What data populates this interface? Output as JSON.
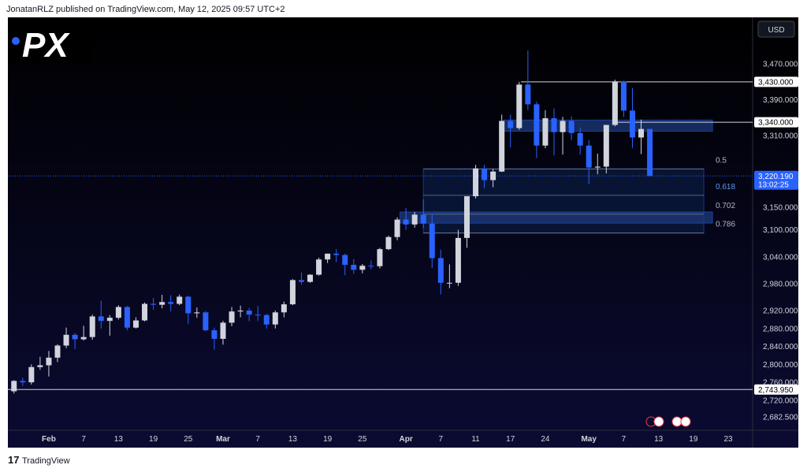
{
  "header": "JonatanRLZ published on TradingView.com, May 12, 2025 09:57 UTC+2",
  "logo": "PX",
  "footer": "TradingView",
  "chart_data": {
    "type": "candlestick",
    "currency": "USD",
    "up_color": "#d1d4dc",
    "down_color": "#2962ff",
    "xlim": [
      -0.7,
      84.8
    ],
    "ylim": [
      2653,
      3574
    ],
    "xticks": [
      {
        "value": 4,
        "label": "Feb"
      },
      {
        "value": 8,
        "label": "7"
      },
      {
        "value": 12,
        "label": "13"
      },
      {
        "value": 16,
        "label": "19"
      },
      {
        "value": 20,
        "label": "25"
      },
      {
        "value": 24,
        "label": "Mar"
      },
      {
        "value": 28,
        "label": "7"
      },
      {
        "value": 32,
        "label": "13"
      },
      {
        "value": 36,
        "label": "19"
      },
      {
        "value": 40,
        "label": "25"
      },
      {
        "value": 45,
        "label": "Apr"
      },
      {
        "value": 49,
        "label": "7"
      },
      {
        "value": 53,
        "label": "11"
      },
      {
        "value": 57,
        "label": "17"
      },
      {
        "value": 61,
        "label": "24"
      },
      {
        "value": 66,
        "label": "May"
      },
      {
        "value": 70,
        "label": "7"
      },
      {
        "value": 74,
        "label": "13"
      },
      {
        "value": 78,
        "label": "19"
      },
      {
        "value": 82,
        "label": "23"
      }
    ],
    "yticks": [
      {
        "value": 2682.5,
        "label": "2,682.500"
      },
      {
        "value": 2720,
        "label": "2,720.000"
      },
      {
        "value": 2760,
        "label": "2,760.000"
      },
      {
        "value": 2800,
        "label": "2,800.000"
      },
      {
        "value": 2840,
        "label": "2,840.000"
      },
      {
        "value": 2880,
        "label": "2,880.000"
      },
      {
        "value": 2920,
        "label": "2,920.000"
      },
      {
        "value": 2980,
        "label": "2,980.000"
      },
      {
        "value": 3040,
        "label": "3,040.000"
      },
      {
        "value": 3100,
        "label": "3,100.000"
      },
      {
        "value": 3150,
        "label": "3,150.000"
      },
      {
        "value": 3310,
        "label": "3,310.000"
      },
      {
        "value": 3390,
        "label": "3,390.000"
      },
      {
        "value": 3470,
        "label": "3,470.000"
      }
    ],
    "open": [
      2740,
      2763,
      2760,
      2794,
      2798,
      2815,
      2842,
      2866,
      2856,
      2861,
      2907,
      2897,
      2904,
      2928,
      2882,
      2898,
      2935,
      2933,
      2939,
      2935,
      2951,
      2914,
      2916,
      2876,
      2857,
      2893,
      2918,
      2920,
      2911,
      2910,
      2889,
      2916,
      2934,
      2988,
      2984,
      3000,
      3034,
      3047,
      3044,
      3022,
      3011,
      3020,
      3019,
      3057,
      3084,
      3123,
      3112,
      3134,
      3114,
      3037,
      2982,
      2982,
      3082,
      3175,
      3237,
      3211,
      3230,
      3343,
      3327,
      3424,
      3380,
      3288,
      3349,
      3318,
      3343,
      3316,
      3288,
      3239,
      3241,
      3334,
      3431,
      3366,
      3306,
      3325
    ],
    "high": [
      2765,
      2770,
      2800,
      2817,
      2830,
      2845,
      2882,
      2870,
      2886,
      2911,
      2942,
      2910,
      2932,
      2930,
      2905,
      2938,
      2948,
      2955,
      2954,
      2956,
      2953,
      2927,
      2919,
      2882,
      2897,
      2928,
      2931,
      2926,
      2930,
      2913,
      2920,
      2940,
      2990,
      3005,
      3001,
      3038,
      3047,
      3057,
      3047,
      3035,
      3024,
      3032,
      3060,
      3087,
      3128,
      3149,
      3140,
      3168,
      3136,
      3056,
      3023,
      3100,
      3175,
      3245,
      3245,
      3236,
      3357,
      3357,
      3430,
      3500,
      3386,
      3367,
      3371,
      3352,
      3353,
      3328,
      3300,
      3270,
      3334,
      3435,
      3433,
      3416,
      3346,
      3325
    ],
    "low": [
      2735,
      2752,
      2755,
      2788,
      2773,
      2805,
      2836,
      2834,
      2853,
      2855,
      2880,
      2864,
      2900,
      2876,
      2880,
      2896,
      2922,
      2925,
      2918,
      2932,
      2890,
      2904,
      2874,
      2833,
      2844,
      2885,
      2905,
      2896,
      2897,
      2880,
      2880,
      2905,
      2932,
      2978,
      2982,
      2998,
      3026,
      3028,
      2999,
      3002,
      3003,
      3012,
      3014,
      3055,
      3077,
      3100,
      3105,
      3104,
      3015,
      2956,
      2970,
      2975,
      3060,
      3170,
      3193,
      3195,
      3229,
      3284,
      3323,
      3367,
      3260,
      3282,
      3266,
      3268,
      3300,
      3268,
      3202,
      3224,
      3226,
      3331,
      3352,
      3283,
      3269,
      3220
    ],
    "close": [
      2763,
      2760,
      2794,
      2798,
      2815,
      2842,
      2866,
      2856,
      2861,
      2907,
      2897,
      2904,
      2928,
      2882,
      2898,
      2935,
      2933,
      2939,
      2935,
      2951,
      2914,
      2916,
      2876,
      2857,
      2893,
      2918,
      2920,
      2911,
      2910,
      2889,
      2916,
      2934,
      2988,
      2984,
      3000,
      3034,
      3047,
      3044,
      3022,
      3011,
      3020,
      3019,
      3057,
      3084,
      3123,
      3112,
      3134,
      3114,
      3037,
      2982,
      2982,
      3082,
      3175,
      3237,
      3211,
      3230,
      3343,
      3327,
      3424,
      3380,
      3288,
      3349,
      3318,
      3343,
      3316,
      3288,
      3239,
      3241,
      3334,
      3431,
      3366,
      3306,
      3325,
      3220.19
    ],
    "zones": [
      {
        "range": [
          3093,
          3236
        ],
        "x": [
          47,
          79.2
        ],
        "color": "#0a1a3d"
      },
      {
        "range": [
          3115,
          3140
        ],
        "x": [
          44.3,
          80.2
        ],
        "color": "#1e3a78"
      },
      {
        "range": [
          3320,
          3345
        ],
        "x": [
          56.2,
          80.2
        ],
        "color": "#1e3a78"
      }
    ],
    "fib_levels": [
      {
        "value": 3236,
        "label": "0.5"
      },
      {
        "value": 3177,
        "label": "0.618"
      },
      {
        "value": 3135,
        "label": "0.702"
      },
      {
        "value": 3093,
        "label": "0.786"
      }
    ],
    "price_lines": [
      {
        "value": 3430,
        "label": "3,430.000",
        "start": 58.2
      },
      {
        "value": 3340,
        "label": "3,340.000",
        "start": 69
      },
      {
        "value": 3220.19,
        "label": "3,220.190",
        "countdown": "13:02:25",
        "start": -0.7,
        "current": true
      },
      {
        "value": 2743.95,
        "label": "2,743.950",
        "start": -0.7
      }
    ]
  }
}
